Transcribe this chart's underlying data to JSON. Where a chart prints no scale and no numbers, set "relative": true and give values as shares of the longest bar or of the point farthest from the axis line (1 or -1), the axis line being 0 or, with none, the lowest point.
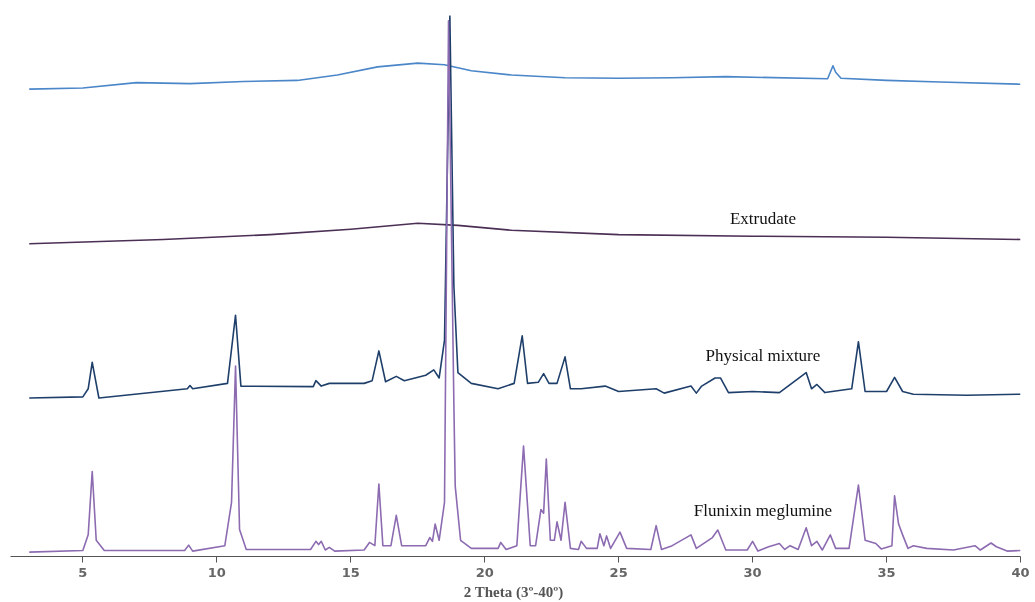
{
  "chart_data": {
    "type": "line",
    "relative": true,
    "xlabel": "2 Theta  (3º-40º)",
    "xlim": [
      2.3,
      40
    ],
    "xticks": [
      5,
      10,
      15,
      20,
      25,
      30,
      35,
      40
    ],
    "grid": false,
    "series": [
      {
        "color": "#4a86c8",
        "x": [
          3,
          5,
          7,
          9,
          11,
          13,
          14.5,
          16,
          17.5,
          18.5,
          19.5,
          21,
          23,
          25,
          27,
          29,
          32.8,
          33.0,
          33.1,
          33.3,
          35,
          37,
          40
        ],
        "values": [
          0.864,
          0.866,
          0.876,
          0.874,
          0.878,
          0.88,
          0.89,
          0.905,
          0.912,
          0.909,
          0.898,
          0.89,
          0.885,
          0.884,
          0.885,
          0.887,
          0.883,
          0.907,
          0.895,
          0.884,
          0.88,
          0.877,
          0.873
        ]
      },
      {
        "name": "Extrudate",
        "color": "#4b2f55",
        "x": [
          3,
          8,
          12,
          15,
          17.5,
          19,
          21,
          25,
          30,
          35,
          40
        ],
        "values": [
          0.578,
          0.586,
          0.595,
          0.605,
          0.616,
          0.612,
          0.603,
          0.595,
          0.592,
          0.59,
          0.586
        ]
      },
      {
        "name": "Physical mixture",
        "color": "#1f3f6b",
        "x": [
          3,
          5,
          5.2,
          5.35,
          5.6,
          8.9,
          9.0,
          9.1,
          10.4,
          10.7,
          10.9,
          13.6,
          13.7,
          13.9,
          14.2,
          15.5,
          15.8,
          16.05,
          16.3,
          16.7,
          17.0,
          17.8,
          18.1,
          18.3,
          18.5,
          18.7,
          18.85,
          19.0,
          19.5,
          20.5,
          21.1,
          21.4,
          21.6,
          22.0,
          22.2,
          22.4,
          22.7,
          23.0,
          23.2,
          23.6,
          24.5,
          25,
          26.4,
          26.7,
          27.7,
          27.9,
          28.1,
          28.6,
          28.8,
          29.1,
          30,
          31,
          32,
          32.2,
          32.4,
          32.7,
          33.7,
          33.95,
          34.2,
          35.0,
          35.3,
          35.6,
          36,
          38,
          40
        ],
        "values": [
          0.293,
          0.295,
          0.31,
          0.359,
          0.293,
          0.31,
          0.316,
          0.31,
          0.32,
          0.446,
          0.315,
          0.314,
          0.325,
          0.315,
          0.32,
          0.32,
          0.325,
          0.38,
          0.323,
          0.333,
          0.325,
          0.335,
          0.345,
          0.33,
          0.4,
          1.0,
          0.5,
          0.34,
          0.32,
          0.31,
          0.32,
          0.408,
          0.32,
          0.322,
          0.338,
          0.32,
          0.32,
          0.369,
          0.31,
          0.31,
          0.315,
          0.305,
          0.31,
          0.302,
          0.315,
          0.302,
          0.315,
          0.33,
          0.33,
          0.303,
          0.305,
          0.303,
          0.34,
          0.31,
          0.318,
          0.303,
          0.31,
          0.397,
          0.305,
          0.305,
          0.331,
          0.305,
          0.3,
          0.298,
          0.3
        ]
      },
      {
        "name": "Flunixin meglumine",
        "color": "#8c6bb1",
        "x": [
          3.0,
          5.0,
          5.2,
          5.35,
          5.5,
          5.8,
          8.8,
          8.95,
          9.1,
          10.3,
          10.55,
          10.7,
          10.85,
          11.1,
          13.5,
          13.7,
          13.8,
          13.9,
          14.05,
          14.2,
          14.4,
          15.5,
          15.7,
          15.9,
          16.05,
          16.2,
          16.5,
          16.7,
          16.9,
          17.8,
          17.95,
          18.05,
          18.15,
          18.3,
          18.5,
          18.65,
          18.85,
          18.9,
          19.1,
          19.2,
          19.5,
          20.5,
          20.6,
          20.8,
          21.2,
          21.45,
          21.7,
          21.9,
          22.1,
          22.2,
          22.3,
          22.45,
          22.6,
          22.7,
          22.85,
          23.0,
          23.2,
          23.5,
          23.6,
          23.8,
          24.2,
          24.3,
          24.45,
          24.55,
          24.7,
          25.05,
          25.3,
          26.2,
          26.4,
          26.6,
          27.0,
          27.7,
          27.9,
          28.5,
          28.7,
          29.0,
          29.8,
          30.0,
          30.2,
          30.6,
          31.0,
          31.2,
          31.4,
          31.7,
          32.0,
          32.2,
          32.4,
          32.6,
          32.9,
          33.1,
          33.6,
          33.95,
          34.2,
          34.6,
          34.8,
          35.2,
          35.3,
          35.45,
          35.6,
          35.8,
          36.0,
          36.5,
          37.5,
          38.3,
          38.5,
          38.9,
          39.1,
          39.5,
          40
        ],
        "values": [
          0.008,
          0.011,
          0.04,
          0.157,
          0.03,
          0.011,
          0.011,
          0.021,
          0.01,
          0.02,
          0.1,
          0.352,
          0.05,
          0.013,
          0.013,
          0.028,
          0.022,
          0.028,
          0.012,
          0.017,
          0.01,
          0.012,
          0.026,
          0.02,
          0.134,
          0.02,
          0.02,
          0.076,
          0.02,
          0.02,
          0.035,
          0.028,
          0.06,
          0.03,
          0.1,
          0.99,
          0.28,
          0.13,
          0.03,
          0.026,
          0.015,
          0.015,
          0.026,
          0.013,
          0.02,
          0.204,
          0.02,
          0.02,
          0.087,
          0.08,
          0.18,
          0.03,
          0.03,
          0.064,
          0.03,
          0.1,
          0.015,
          0.013,
          0.028,
          0.015,
          0.015,
          0.042,
          0.02,
          0.038,
          0.015,
          0.045,
          0.015,
          0.013,
          0.057,
          0.013,
          0.02,
          0.04,
          0.015,
          0.035,
          0.049,
          0.012,
          0.012,
          0.028,
          0.01,
          0.018,
          0.024,
          0.013,
          0.02,
          0.013,
          0.053,
          0.02,
          0.028,
          0.012,
          0.04,
          0.015,
          0.015,
          0.132,
          0.03,
          0.024,
          0.014,
          0.02,
          0.112,
          0.06,
          0.04,
          0.015,
          0.02,
          0.015,
          0.012,
          0.02,
          0.012,
          0.025,
          0.018,
          0.01,
          0.011
        ]
      }
    ]
  }
}
